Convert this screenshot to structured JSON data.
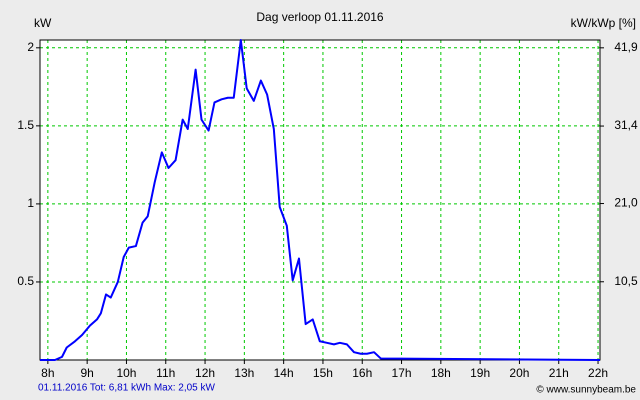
{
  "chart_data": {
    "type": "line",
    "title": "Dag  verloop 01.11.2016",
    "y_label": "kW",
    "y2_label": "kW/kWp [%]",
    "footer_left": "01.11.2016 Tot: 6,81 kWh Max: 2,05 kW",
    "footer_right": "© www.sunnybeam.be",
    "color": "#0000ff",
    "grid": true,
    "x": [
      7.8,
      8.18,
      8.36,
      8.48,
      8.69,
      8.87,
      9.07,
      9.25,
      9.35,
      9.48,
      9.6,
      9.78,
      9.93,
      10.06,
      10.24,
      10.41,
      10.54,
      10.72,
      10.9,
      11.07,
      11.25,
      11.43,
      11.56,
      11.76,
      11.91,
      12.09,
      12.24,
      12.42,
      12.58,
      12.73,
      12.91,
      13.06,
      13.24,
      13.42,
      13.58,
      13.75,
      13.9,
      14.08,
      14.23,
      14.39,
      14.56,
      14.74,
      14.92,
      15.1,
      15.28,
      15.43,
      15.61,
      15.79,
      15.96,
      16.12,
      16.3,
      16.47,
      22.05
    ],
    "values": [
      0,
      0,
      0.02,
      0.08,
      0.12,
      0.16,
      0.22,
      0.26,
      0.3,
      0.42,
      0.4,
      0.5,
      0.66,
      0.72,
      0.73,
      0.88,
      0.92,
      1.14,
      1.33,
      1.23,
      1.28,
      1.54,
      1.48,
      1.86,
      1.54,
      1.47,
      1.65,
      1.67,
      1.68,
      1.68,
      2.05,
      1.74,
      1.66,
      1.79,
      1.7,
      1.48,
      0.98,
      0.86,
      0.51,
      0.65,
      0.23,
      0.26,
      0.12,
      0.11,
      0.1,
      0.11,
      0.1,
      0.05,
      0.04,
      0.04,
      0.05,
      0.01,
      0
    ],
    "xlim": [
      7.8,
      22.05
    ],
    "xticks": [
      {
        "value": 8,
        "label": "8h"
      },
      {
        "value": 9,
        "label": "9h"
      },
      {
        "value": 10,
        "label": "10h"
      },
      {
        "value": 11,
        "label": "11h"
      },
      {
        "value": 12,
        "label": "12h"
      },
      {
        "value": 13,
        "label": "13h"
      },
      {
        "value": 14,
        "label": "14h"
      },
      {
        "value": 15,
        "label": "15h"
      },
      {
        "value": 16,
        "label": "16h"
      },
      {
        "value": 17,
        "label": "17h"
      },
      {
        "value": 18,
        "label": "18h"
      },
      {
        "value": 19,
        "label": "19h"
      },
      {
        "value": 20,
        "label": "20h"
      },
      {
        "value": 21,
        "label": "21h"
      },
      {
        "value": 22,
        "label": "22h"
      }
    ],
    "ylim": [
      0,
      2.05
    ],
    "yticks": [
      0.5,
      1,
      1.5,
      2
    ],
    "y2lim": [
      0,
      42.95
    ],
    "y2ticks": [
      {
        "value": 10.5,
        "label": "10,5"
      },
      {
        "value": 21.0,
        "label": "21,0"
      },
      {
        "value": 31.4,
        "label": "31,4"
      },
      {
        "value": 41.9,
        "label": "41,9"
      }
    ]
  }
}
